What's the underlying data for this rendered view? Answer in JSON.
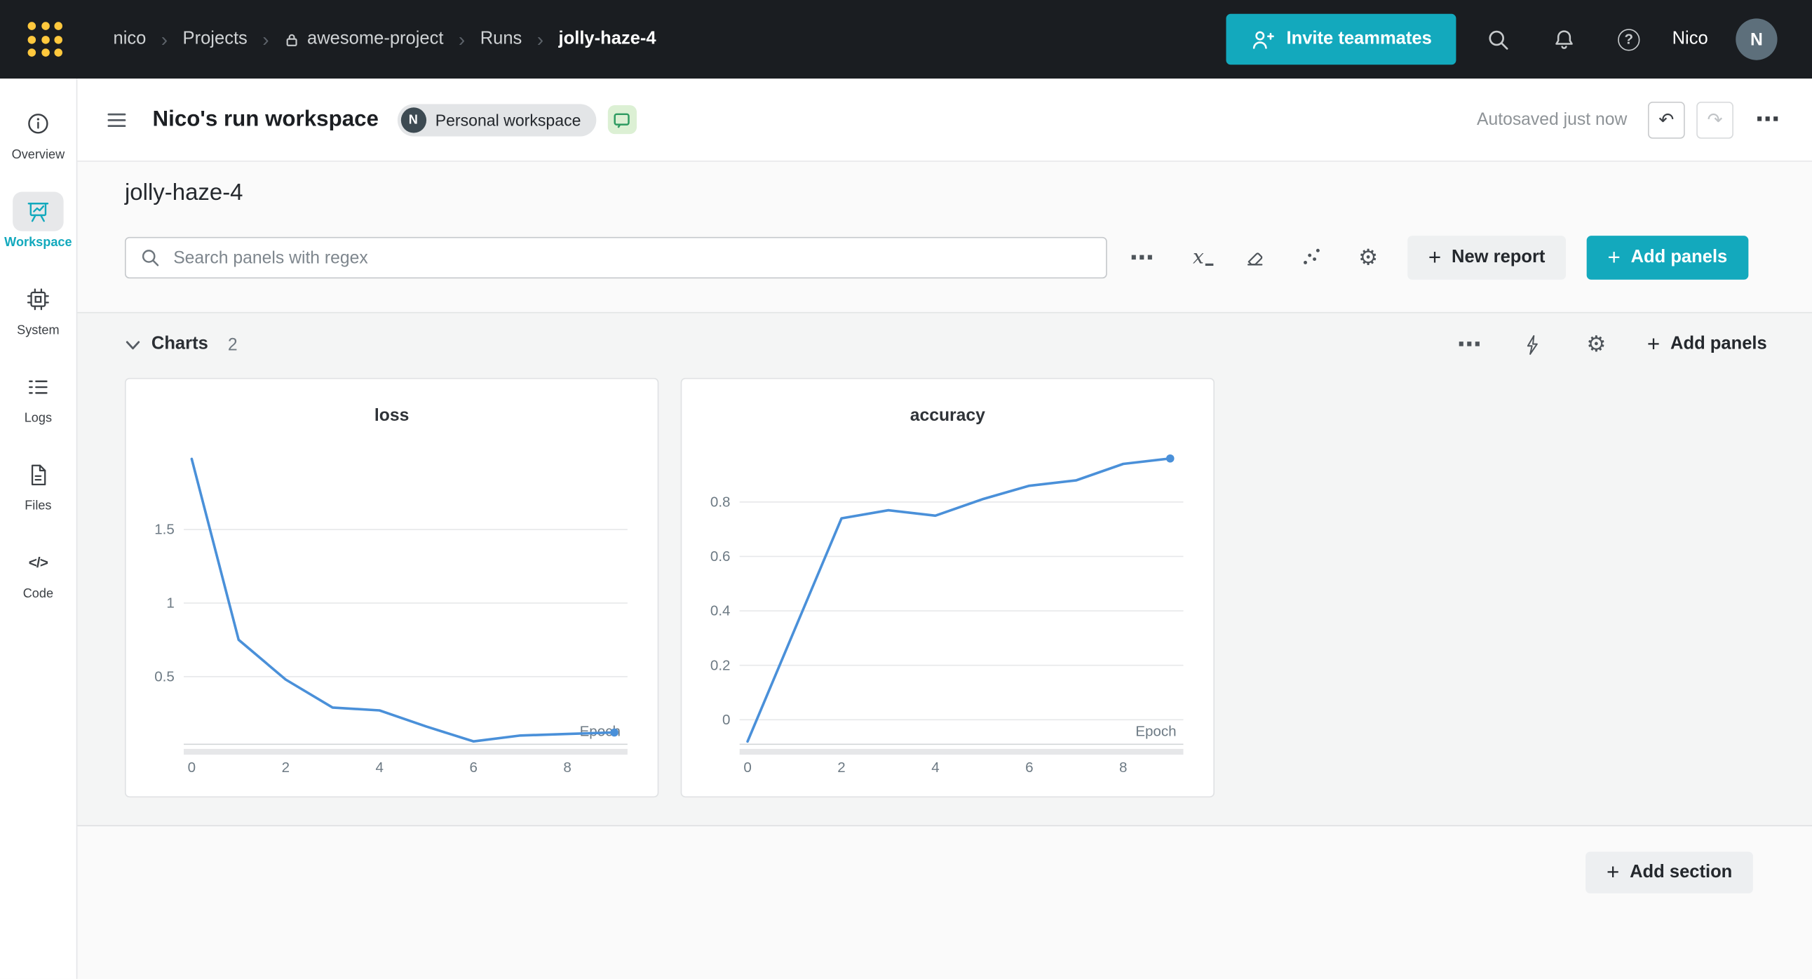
{
  "colors": {
    "accent": "#13a9bd",
    "logo_yellow": "#ffc83d",
    "navbar_bg": "#1a1d21"
  },
  "icons": {
    "chevron_sep": "›",
    "question": "?",
    "more": "⋯",
    "gear": "⚙",
    "undo": "↶",
    "redo": "↷",
    "code": "</>",
    "x_axis": "x",
    "plus": "+"
  },
  "navbar": {
    "breadcrumb": [
      "nico",
      "Projects",
      "awesome-project",
      "Runs",
      "jolly-haze-4"
    ],
    "invite_label": "Invite teammates",
    "username": "Nico",
    "avatar_initial": "N"
  },
  "sidebar": {
    "items": [
      {
        "label": "Overview"
      },
      {
        "label": "Workspace",
        "active": true
      },
      {
        "label": "System"
      },
      {
        "label": "Logs"
      },
      {
        "label": "Files"
      },
      {
        "label": "Code"
      }
    ]
  },
  "header": {
    "title": "Nico's run workspace",
    "badge_initial": "N",
    "badge_label": "Personal workspace",
    "autosave": "Autosaved just now"
  },
  "run": {
    "name": "jolly-haze-4",
    "search_placeholder": "Search panels with regex",
    "new_report_label": "New report",
    "add_panels_label": "Add panels"
  },
  "section": {
    "title": "Charts",
    "count": "2",
    "add_panels_label": "Add panels"
  },
  "footer": {
    "add_section_label": "Add section"
  },
  "chart_data": [
    {
      "type": "line",
      "title": "loss",
      "xlabel": "Epoch",
      "x": [
        0,
        1,
        2,
        3,
        4,
        5,
        6,
        7,
        8,
        9
      ],
      "values": [
        1.98,
        0.75,
        0.48,
        0.29,
        0.27,
        0.16,
        0.06,
        0.1,
        0.11,
        0.12
      ],
      "xticks": [
        0,
        2,
        4,
        6,
        8
      ],
      "yticks": [
        0.5,
        1,
        1.5
      ],
      "xlim": [
        -0.17,
        9.28
      ],
      "ylim": [
        0.04,
        2.02
      ],
      "grid": true,
      "legend": false,
      "line_color": "#4a90d9",
      "endpoint_dot": true
    },
    {
      "type": "line",
      "title": "accuracy",
      "xlabel": "Epoch",
      "x": [
        0,
        1,
        2,
        3,
        4,
        5,
        6,
        7,
        8,
        9
      ],
      "values": [
        -0.08,
        0.33,
        0.74,
        0.77,
        0.75,
        0.81,
        0.86,
        0.88,
        0.94,
        0.96
      ],
      "xticks": [
        0,
        2,
        4,
        6,
        8
      ],
      "yticks": [
        0,
        0.2,
        0.4,
        0.6,
        0.8
      ],
      "xlim": [
        -0.17,
        9.28
      ],
      "ylim": [
        -0.09,
        0.98
      ],
      "grid": true,
      "legend": false,
      "line_color": "#4a90d9",
      "endpoint_dot": true
    }
  ]
}
